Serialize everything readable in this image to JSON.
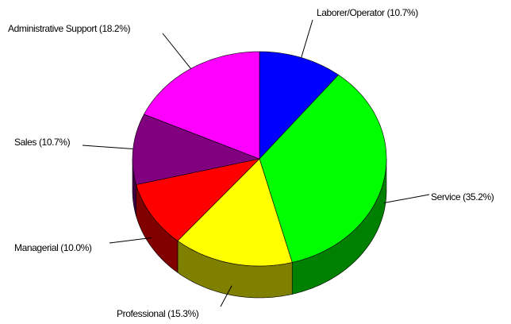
{
  "chart_data": {
    "type": "pie3d",
    "categories": [
      "Laborer/Operator (10.7%)",
      "Service (35.2%)",
      "Professional (15.3%)",
      "Managerial (10.0%)",
      "Sales (10.7%)",
      "Administrative Support (18.2%)"
    ],
    "values": [
      10.7,
      35.2,
      15.3,
      10.0,
      10.7,
      18.2
    ],
    "colors": [
      "#0000ff",
      "#00ff00",
      "#ffff00",
      "#ff0000",
      "#800080",
      "#ff00ff"
    ],
    "side_colors": [
      "#000080",
      "#008000",
      "#808000",
      "#800000",
      "#400040",
      "#800080"
    ]
  }
}
